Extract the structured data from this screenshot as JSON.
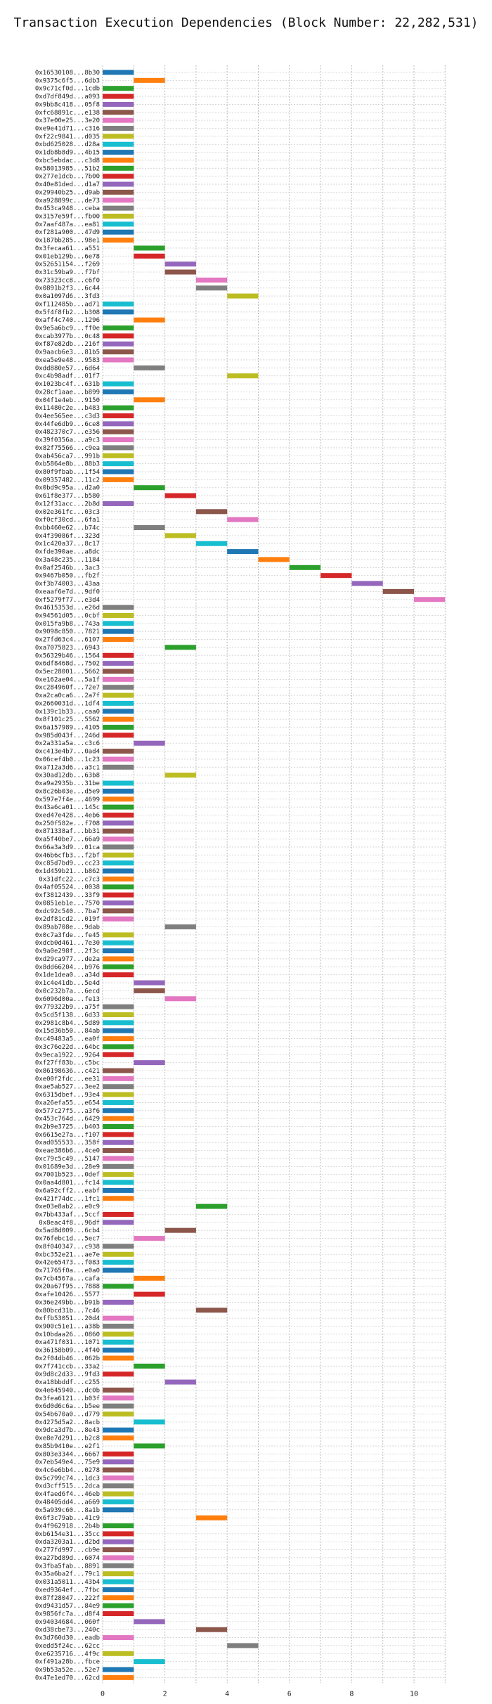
{
  "chart_data": {
    "type": "gantt",
    "title": "Transaction Execution Dependencies (Block Number: 22,282,531)",
    "xlabel": "",
    "ylabel": "",
    "xlim": [
      0,
      11
    ],
    "xticks": [
      0,
      2,
      4,
      6,
      8,
      10
    ],
    "grid": true,
    "colors": [
      "#1f77b4",
      "#ff7f0e",
      "#2ca02c",
      "#d62728",
      "#9467bd",
      "#8c564b",
      "#e377c2",
      "#7f7f7f",
      "#bcbd22",
      "#17becf"
    ],
    "transactions": [
      {
        "label": "0x16530108...8b30",
        "start": 0
      },
      {
        "label": "0x9375c6f5...6db3",
        "start": 1
      },
      {
        "label": "0x9c71cf0d...1cdb",
        "start": 0
      },
      {
        "label": "0xd7df849d...a093",
        "start": 0
      },
      {
        "label": "0x9bb8c418...05f8",
        "start": 0
      },
      {
        "label": "0xfc68891c...e138",
        "start": 0
      },
      {
        "label": "0x37e00e25...3e20",
        "start": 0
      },
      {
        "label": "0xe9e41d71...c316",
        "start": 0
      },
      {
        "label": "0xf22c9841...d035",
        "start": 0
      },
      {
        "label": "0xbd625028...d28a",
        "start": 0
      },
      {
        "label": "0x1db8b8d9...4b15",
        "start": 0
      },
      {
        "label": "0xbc5ebdac...c3d8",
        "start": 0
      },
      {
        "label": "0x58013985...51b2",
        "start": 0
      },
      {
        "label": "0x277e1dcb...7b00",
        "start": 0
      },
      {
        "label": "0x40e81ded...d1a7",
        "start": 0
      },
      {
        "label": "0x29940b25...d9ab",
        "start": 0
      },
      {
        "label": "0xa928899c...de73",
        "start": 0
      },
      {
        "label": "0x453ca948...ceba",
        "start": 0
      },
      {
        "label": "0x3157e59f...fb00",
        "start": 0
      },
      {
        "label": "0x7aaf487a...ea81",
        "start": 0
      },
      {
        "label": "0xf281a900...47d9",
        "start": 0
      },
      {
        "label": "0x187bb285...98e1",
        "start": 0
      },
      {
        "label": "0x3fecaa61...a551",
        "start": 1
      },
      {
        "label": "0x01eb129b...6e78",
        "start": 1
      },
      {
        "label": "0x52651154...f269",
        "start": 2
      },
      {
        "label": "0x31c59ba9...f7bf",
        "start": 2
      },
      {
        "label": "0x73323cc8...c6f0",
        "start": 3
      },
      {
        "label": "0x0891b2f3...6c44",
        "start": 3
      },
      {
        "label": "0x0a1097d6...3fd3",
        "start": 4
      },
      {
        "label": "0xf112485b...ad71",
        "start": 0
      },
      {
        "label": "0x5f4f8fb2...b308",
        "start": 0
      },
      {
        "label": "0xaff4c740...1296",
        "start": 1
      },
      {
        "label": "0x9e5a6bc9...ff0e",
        "start": 0
      },
      {
        "label": "0xcab3977b...0c48",
        "start": 0
      },
      {
        "label": "0xf87e82db...216f",
        "start": 0
      },
      {
        "label": "0x9aacb6e3...81b5",
        "start": 0
      },
      {
        "label": "0xea5e9e48...9583",
        "start": 0
      },
      {
        "label": "0xdd880e57...6d64",
        "start": 1
      },
      {
        "label": "0xc4b98adf...01f7",
        "start": 4
      },
      {
        "label": "0x1023bc4f...631b",
        "start": 0
      },
      {
        "label": "0x28cf1aae...b899",
        "start": 0
      },
      {
        "label": "0x04f1e4eb...9150",
        "start": 1
      },
      {
        "label": "0x11480c2e...b483",
        "start": 0
      },
      {
        "label": "0x4ee565ee...c3d3",
        "start": 0
      },
      {
        "label": "0x44fe6db9...6ce8",
        "start": 0
      },
      {
        "label": "0x482370c7...e356",
        "start": 0
      },
      {
        "label": "0x39f0356a...a9c3",
        "start": 0
      },
      {
        "label": "0x82f75566...c9ea",
        "start": 0
      },
      {
        "label": "0xab456ca7...991b",
        "start": 0
      },
      {
        "label": "0xb5864e8b...88b3",
        "start": 0
      },
      {
        "label": "0x80f9fbab...1f54",
        "start": 0
      },
      {
        "label": "0x09357482...11c2",
        "start": 0
      },
      {
        "label": "0x0bd9c95a...d2a0",
        "start": 1
      },
      {
        "label": "0x61f8e377...b580",
        "start": 2
      },
      {
        "label": "0x12f31acc...2b8d",
        "start": 0
      },
      {
        "label": "0x02e361fc...03c3",
        "start": 3
      },
      {
        "label": "0xf0cf30cd...6fa1",
        "start": 4
      },
      {
        "label": "0xbb460e62...b74c",
        "start": 1
      },
      {
        "label": "0x4f39086f...323d",
        "start": 2
      },
      {
        "label": "0x1c420a37...8c17",
        "start": 3
      },
      {
        "label": "0xfde390ae...a8dc",
        "start": 4
      },
      {
        "label": "0x3a48c235...1184",
        "start": 5
      },
      {
        "label": "0x0af2546b...3ac3",
        "start": 6
      },
      {
        "label": "0x9467b050...fb2f",
        "start": 7
      },
      {
        "label": "0xf3b74003...43aa",
        "start": 8
      },
      {
        "label": "0xeaaf6e7d...9df0",
        "start": 9
      },
      {
        "label": "0xf5279f77...e3d4",
        "start": 10
      },
      {
        "label": "0x4615353d...e26d",
        "start": 0
      },
      {
        "label": "0x94561d05...0cbf",
        "start": 0
      },
      {
        "label": "0x015fa9b8...743a",
        "start": 0
      },
      {
        "label": "0x9098c850...7821",
        "start": 0
      },
      {
        "label": "0x27fd63c4...6107",
        "start": 0
      },
      {
        "label": "0xa7075823...6943",
        "start": 2
      },
      {
        "label": "0x56329b46...1564",
        "start": 0
      },
      {
        "label": "0x6df8468d...7502",
        "start": 0
      },
      {
        "label": "0x5ec28001...5662",
        "start": 0
      },
      {
        "label": "0xe162ae04...5a1f",
        "start": 0
      },
      {
        "label": "0xc284960f...72e7",
        "start": 0
      },
      {
        "label": "0xa2ca0ca6...2a7f",
        "start": 0
      },
      {
        "label": "0x2660031d...1df4",
        "start": 0
      },
      {
        "label": "0x139c1b33...caa0",
        "start": 0
      },
      {
        "label": "0x8f101c25...5562",
        "start": 0
      },
      {
        "label": "0x6a157989...4105",
        "start": 0
      },
      {
        "label": "0x985d043f...246d",
        "start": 0
      },
      {
        "label": "0x2a331a5a...c3c6",
        "start": 1
      },
      {
        "label": "0xc413e4b7...0ad4",
        "start": 0
      },
      {
        "label": "0x06cef4b0...1c23",
        "start": 0
      },
      {
        "label": "0xa712a3d6...a3c1",
        "start": 0
      },
      {
        "label": "0x30ad12db...63b8",
        "start": 2
      },
      {
        "label": "0xa9a2935b...31be",
        "start": 0
      },
      {
        "label": "0x8c26b03e...d5e9",
        "start": 0
      },
      {
        "label": "0x597e7f4e...4699",
        "start": 0
      },
      {
        "label": "0x43a6ca01...145c",
        "start": 0
      },
      {
        "label": "0xed47e428...4eb6",
        "start": 0
      },
      {
        "label": "0x250f582e...f708",
        "start": 0
      },
      {
        "label": "0x871338af...bb31",
        "start": 0
      },
      {
        "label": "0xa5f40be7...66a9",
        "start": 0
      },
      {
        "label": "0x66a3a3d9...01ca",
        "start": 0
      },
      {
        "label": "0x46b6cfb3...f2bf",
        "start": 0
      },
      {
        "label": "0xc85d7bd9...cc23",
        "start": 0
      },
      {
        "label": "0x1d459b21...b862",
        "start": 0
      },
      {
        "label": "0x31dfc22...c7c3",
        "start": 0
      },
      {
        "label": "0x4af05524...0038",
        "start": 0
      },
      {
        "label": "0xf3812439...33f9",
        "start": 0
      },
      {
        "label": "0x0851eb1e...7570",
        "start": 0
      },
      {
        "label": "0xdc92c540...7ba7",
        "start": 0
      },
      {
        "label": "0x2df81cd2...019f",
        "start": 0
      },
      {
        "label": "0x89ab708e...9dab",
        "start": 2
      },
      {
        "label": "0x0c7a3fde...fe45",
        "start": 0
      },
      {
        "label": "0xdcb0d461...7e30",
        "start": 0
      },
      {
        "label": "0x9a0e298f...2f3c",
        "start": 0
      },
      {
        "label": "0xd29ca977...de2a",
        "start": 0
      },
      {
        "label": "0x8dd66204...b976",
        "start": 0
      },
      {
        "label": "0x1de1dea0...a34d",
        "start": 0
      },
      {
        "label": "0x1c4e41db...5e4d",
        "start": 1
      },
      {
        "label": "0x0c232b7a...6ecd",
        "start": 1
      },
      {
        "label": "0x6096d00a...fe13",
        "start": 2
      },
      {
        "label": "0x779322b9...a75f",
        "start": 0
      },
      {
        "label": "0x5cd5f138...6d33",
        "start": 0
      },
      {
        "label": "0x2981c8b4...5d89",
        "start": 0
      },
      {
        "label": "0x15d36b50...84ab",
        "start": 0
      },
      {
        "label": "0xc49483a5...ea0f",
        "start": 0
      },
      {
        "label": "0x3c76e22d...64bc",
        "start": 0
      },
      {
        "label": "0x9eca1922...9264",
        "start": 0
      },
      {
        "label": "0xf27ff83b...c5bc",
        "start": 1
      },
      {
        "label": "0x86198636...c421",
        "start": 0
      },
      {
        "label": "0xe00f2fdc...ee31",
        "start": 0
      },
      {
        "label": "0xae5ab527...3ee2",
        "start": 0
      },
      {
        "label": "0x6315dbef...93e4",
        "start": 0
      },
      {
        "label": "0xa26efa55...e654",
        "start": 0
      },
      {
        "label": "0x577c27f5...a3f6",
        "start": 0
      },
      {
        "label": "0x453c764d...6429",
        "start": 0
      },
      {
        "label": "0x2b9e3725...b403",
        "start": 0
      },
      {
        "label": "0x6615e27a...f107",
        "start": 0
      },
      {
        "label": "0xad055533...358f",
        "start": 0
      },
      {
        "label": "0xeae386b6...4ce0",
        "start": 0
      },
      {
        "label": "0xc79c5c49...5147",
        "start": 0
      },
      {
        "label": "0x01689e3d...28e9",
        "start": 0
      },
      {
        "label": "0x7001b523...0def",
        "start": 0
      },
      {
        "label": "0x0aa4d801...fc14",
        "start": 0
      },
      {
        "label": "0x6a92cff2...eabf",
        "start": 0
      },
      {
        "label": "0x421f74dc...1fc1",
        "start": 0
      },
      {
        "label": "0xe03e8ab2...e0c9",
        "start": 3
      },
      {
        "label": "0x7bb433af...5ccf",
        "start": 0
      },
      {
        "label": "0x8eac4f8...96df",
        "start": 0
      },
      {
        "label": "0x5ad8d009...6cb4",
        "start": 2
      },
      {
        "label": "0x76febc1d...5ec7",
        "start": 1
      },
      {
        "label": "0x8f040347...c938",
        "start": 0
      },
      {
        "label": "0xbc352e21...ae7e",
        "start": 0
      },
      {
        "label": "0x42e65473...f083",
        "start": 0
      },
      {
        "label": "0x71765f0a...e0a0",
        "start": 0
      },
      {
        "label": "0x7cb4567a...cafa",
        "start": 1
      },
      {
        "label": "0x20a67f95...7888",
        "start": 0
      },
      {
        "label": "0xafe10426...5577",
        "start": 1
      },
      {
        "label": "0x36e249bb...b91b",
        "start": 0
      },
      {
        "label": "0x80bcd31b...7c46",
        "start": 3
      },
      {
        "label": "0xffb53051...20d4",
        "start": 0
      },
      {
        "label": "0x900c51e1...a38b",
        "start": 0
      },
      {
        "label": "0x10bdaa26...0860",
        "start": 0
      },
      {
        "label": "0xa471f031...1071",
        "start": 0
      },
      {
        "label": "0x36158b09...4f40",
        "start": 0
      },
      {
        "label": "0x2f04db46...062b",
        "start": 0
      },
      {
        "label": "0x7f741ccb...33a2",
        "start": 1
      },
      {
        "label": "0x9d8c2d33...9fd3",
        "start": 0
      },
      {
        "label": "0xa18bbddf...c255",
        "start": 2
      },
      {
        "label": "0x4e645940...dc0b",
        "start": 0
      },
      {
        "label": "0x3fea6121...b03f",
        "start": 0
      },
      {
        "label": "0x6d0d6c6a...b5ee",
        "start": 0
      },
      {
        "label": "0x54b670a0...d779",
        "start": 0
      },
      {
        "label": "0x4275d5a2...8acb",
        "start": 1
      },
      {
        "label": "0x9dca3d7b...8e43",
        "start": 0
      },
      {
        "label": "0xe8e7d291...b2c8",
        "start": 0
      },
      {
        "label": "0x85b9410e...e2f1",
        "start": 1
      },
      {
        "label": "0x803e3344...6667",
        "start": 0
      },
      {
        "label": "0x7eb549e4...75e9",
        "start": 0
      },
      {
        "label": "0x4c6e6bb4...0278",
        "start": 0
      },
      {
        "label": "0x5c799c74...1dc3",
        "start": 0
      },
      {
        "label": "0xd3cff515...2dca",
        "start": 0
      },
      {
        "label": "0x4faed6f4...46eb",
        "start": 0
      },
      {
        "label": "0x48405dd4...a669",
        "start": 0
      },
      {
        "label": "0x5a939c60...8a1b",
        "start": 0
      },
      {
        "label": "0x6f3c79ab...41c9",
        "start": 3
      },
      {
        "label": "0x4f962918...2b4b",
        "start": 0
      },
      {
        "label": "0xb6154e31...35cc",
        "start": 0
      },
      {
        "label": "0xda3203a1...d2bd",
        "start": 0
      },
      {
        "label": "0x277fd997...cb9e",
        "start": 0
      },
      {
        "label": "0xa27bd89d...6074",
        "start": 0
      },
      {
        "label": "0x3fba5fab...8891",
        "start": 0
      },
      {
        "label": "0x35a6ba2f...79c1",
        "start": 0
      },
      {
        "label": "0x031a5011...43b4",
        "start": 0
      },
      {
        "label": "0xed9364ef...7fbc",
        "start": 0
      },
      {
        "label": "0x87f28047...222f",
        "start": 0
      },
      {
        "label": "0xd9431d57...84e9",
        "start": 0
      },
      {
        "label": "0x9856fc7a...d8f4",
        "start": 0
      },
      {
        "label": "0x94034684...060f",
        "start": 1
      },
      {
        "label": "0xd38cbe73...240c",
        "start": 3
      },
      {
        "label": "0x3d760d30...eadb",
        "start": 0
      },
      {
        "label": "0xedd5f24c...62cc",
        "start": 4
      },
      {
        "label": "0xe6235716...4f9c",
        "start": 0
      },
      {
        "label": "0xf491a28b...fbce",
        "start": 1
      },
      {
        "label": "0x9b53a52e...52e7",
        "start": 0
      },
      {
        "label": "0x47e1ed70...62cd",
        "start": 0
      }
    ]
  }
}
